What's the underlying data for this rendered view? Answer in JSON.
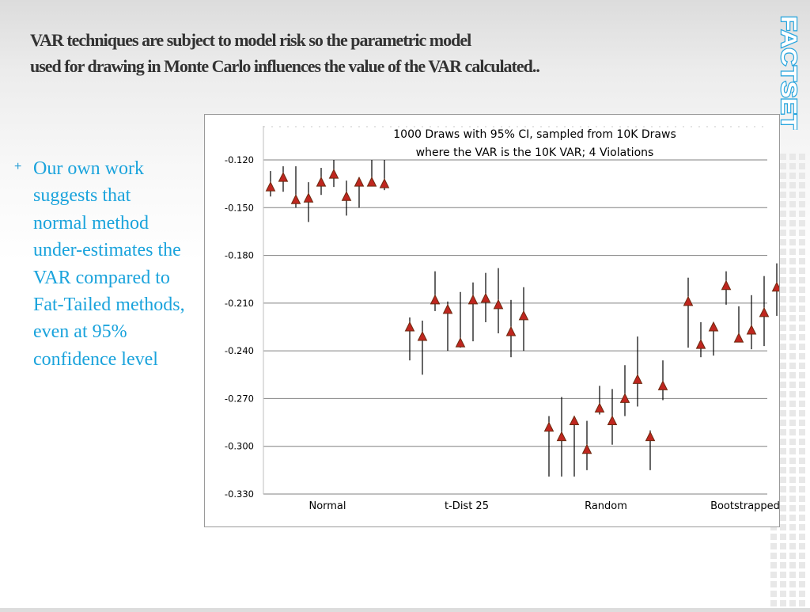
{
  "slide": {
    "title_line1": "VAR techniques are subject to model risk so the parametric model",
    "title_line2": "used for drawing in Monte Carlo influences the value of the VAR calculated..",
    "logo_text": "FACTSET",
    "bullets": [
      {
        "marker": "+",
        "lines": [
          "Our own work",
          "suggests that",
          "normal method",
          "under-estimates the",
          "VAR compared to",
          "Fat-Tailed methods,",
          "even at 95%",
          "confidence level"
        ]
      }
    ]
  },
  "colors": {
    "accent": "#1aa3dc",
    "title": "#333333",
    "marker_fill": "#c0261f",
    "marker_stroke": "#6b2a10",
    "gridline": "#808080",
    "deco_squares": "#e8e8e8"
  },
  "chart_data": {
    "type": "scatter",
    "title_lines": [
      "1000 Draws with 95% CI, sampled from 10K Draws",
      "where the VAR is the 10K VAR; 4 Violations"
    ],
    "xlabel": "",
    "ylabel": "",
    "ylim": [
      -0.33,
      -0.12
    ],
    "yticks": [
      -0.12,
      -0.15,
      -0.18,
      -0.21,
      -0.24,
      -0.27,
      -0.3,
      -0.33
    ],
    "ytick_labels": [
      "-0.120",
      "-0.150",
      "-0.180",
      "-0.210",
      "-0.240",
      "-0.270",
      "-0.300",
      "-0.330"
    ],
    "grid": true,
    "categories": [
      "Normal",
      "t-Dist 25",
      "Random",
      "Bootstrapped"
    ],
    "points_per_category": 10,
    "series": [
      {
        "category": "Normal",
        "values": [
          -0.137,
          -0.131,
          -0.145,
          -0.144,
          -0.134,
          -0.129,
          -0.143,
          -0.134,
          -0.134,
          -0.135
        ],
        "ci_low": [
          -0.143,
          -0.14,
          -0.15,
          -0.159,
          -0.142,
          -0.137,
          -0.155,
          -0.15,
          -0.136,
          -0.139
        ],
        "ci_high": [
          -0.127,
          -0.124,
          -0.124,
          -0.134,
          -0.125,
          -0.12,
          -0.133,
          -0.131,
          -0.12,
          -0.12
        ]
      },
      {
        "category": "t-Dist 25",
        "values": [
          -0.225,
          -0.231,
          -0.208,
          -0.214,
          -0.235,
          -0.208,
          -0.207,
          -0.211,
          -0.228,
          -0.218
        ],
        "ci_low": [
          -0.246,
          -0.255,
          -0.215,
          -0.24,
          -0.238,
          -0.234,
          -0.222,
          -0.229,
          -0.244,
          -0.24
        ],
        "ci_high": [
          -0.219,
          -0.221,
          -0.19,
          -0.209,
          -0.203,
          -0.197,
          -0.191,
          -0.188,
          -0.208,
          -0.2
        ]
      },
      {
        "category": "Random",
        "values": [
          -0.288,
          -0.294,
          -0.284,
          -0.302,
          -0.276,
          -0.284,
          -0.27,
          -0.258,
          -0.294,
          -0.262
        ],
        "ci_low": [
          -0.319,
          -0.319,
          -0.319,
          -0.315,
          -0.28,
          -0.299,
          -0.281,
          -0.275,
          -0.315,
          -0.271
        ],
        "ci_high": [
          -0.281,
          -0.269,
          -0.283,
          -0.284,
          -0.262,
          -0.264,
          -0.249,
          -0.231,
          -0.29,
          -0.246
        ]
      },
      {
        "category": "Bootstrapped",
        "values": [
          -0.209,
          -0.236,
          -0.225,
          -0.199,
          -0.232,
          -0.227,
          -0.216,
          -0.2,
          -0.219,
          -0.209
        ],
        "ci_low": [
          -0.238,
          -0.244,
          -0.243,
          -0.211,
          -0.234,
          -0.239,
          -0.237,
          -0.218,
          -0.238,
          -0.232
        ],
        "ci_high": [
          -0.194,
          -0.222,
          -0.223,
          -0.19,
          -0.212,
          -0.205,
          -0.193,
          -0.185,
          -0.193,
          -0.202
        ]
      }
    ]
  }
}
